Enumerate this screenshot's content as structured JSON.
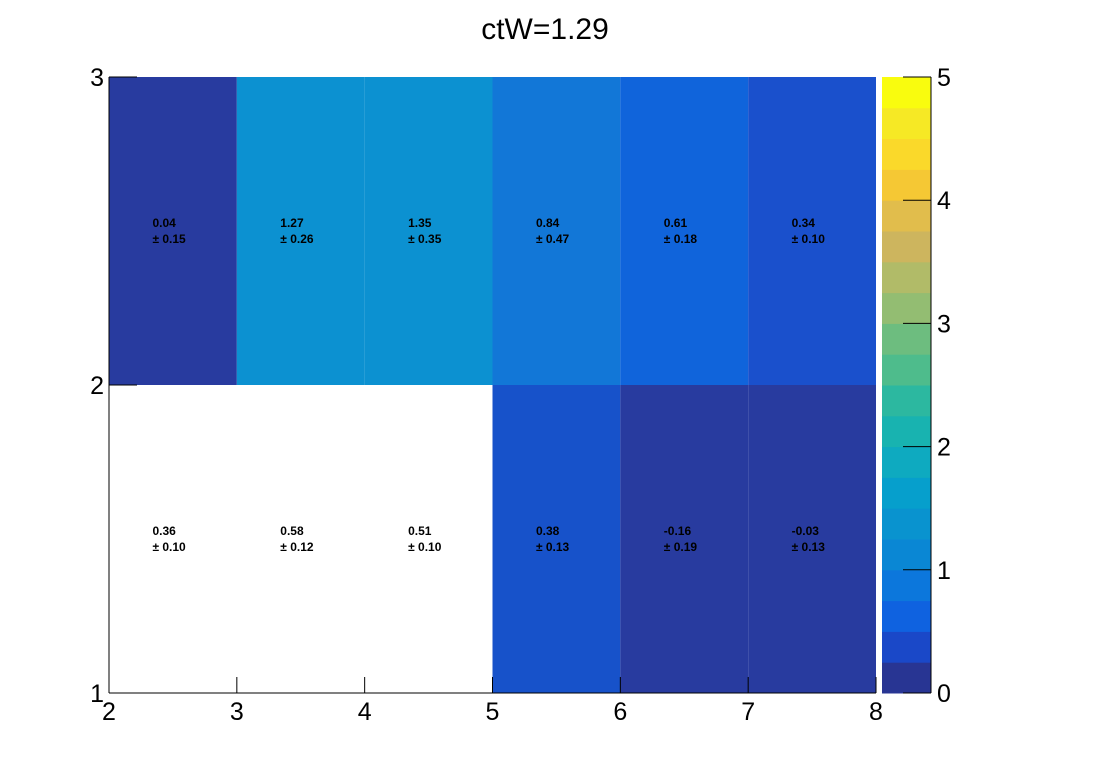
{
  "chart_data": {
    "type": "heatmap",
    "title": "ctW=1.29",
    "xlabel": "",
    "ylabel": "",
    "xlim": [
      2,
      8
    ],
    "ylim": [
      1,
      3
    ],
    "x_edges": [
      2,
      3,
      4,
      5,
      6,
      7,
      8
    ],
    "y_edges": [
      1,
      2,
      3
    ],
    "x_ticks": [
      "2",
      "3",
      "4",
      "5",
      "6",
      "7",
      "8"
    ],
    "y_ticks": [
      "1",
      "2",
      "3"
    ],
    "zlim": [
      0,
      5
    ],
    "colorbar_ticks": [
      "0",
      "1",
      "2",
      "3",
      "4",
      "5"
    ],
    "colorbar_palette": [
      "#283593",
      "#1a48c8",
      "#0f62e0",
      "#0c77dc",
      "#0a87d4",
      "#0993cf",
      "#069fcc",
      "#0eaac0",
      "#18b3b0",
      "#2cb8a0",
      "#4ebc8c",
      "#6dbd7f",
      "#93bd72",
      "#b1bb68",
      "#cdb55e",
      "#e1bd4c",
      "#f5c834",
      "#fad92a",
      "#f6e925",
      "#f9fc0e"
    ],
    "cells": [
      {
        "x": 2.5,
        "y": 2.5,
        "value": "0.04",
        "error": "± 0.15",
        "color": "#283b9f"
      },
      {
        "x": 3.5,
        "y": 2.5,
        "value": "1.27",
        "error": "± 0.26",
        "color": "#0c91d1"
      },
      {
        "x": 4.5,
        "y": 2.5,
        "value": "1.35",
        "error": "± 0.35",
        "color": "#0c91d1"
      },
      {
        "x": 5.5,
        "y": 2.5,
        "value": "0.84",
        "error": "± 0.47",
        "color": "#1277d7"
      },
      {
        "x": 6.5,
        "y": 2.5,
        "value": "0.61",
        "error": "± 0.18",
        "color": "#1064db"
      },
      {
        "x": 7.5,
        "y": 2.5,
        "value": "0.34",
        "error": "± 0.10",
        "color": "#1a50cc"
      },
      {
        "x": 2.5,
        "y": 1.5,
        "value": "0.36",
        "error": "± 0.10",
        "color": "#ffffff"
      },
      {
        "x": 3.5,
        "y": 1.5,
        "value": "0.58",
        "error": "± 0.12",
        "color": "#ffffff"
      },
      {
        "x": 4.5,
        "y": 1.5,
        "value": "0.51",
        "error": "± 0.10",
        "color": "#ffffff"
      },
      {
        "x": 5.5,
        "y": 1.5,
        "value": "0.38",
        "error": "± 0.13",
        "color": "#1752ca"
      },
      {
        "x": 6.5,
        "y": 1.5,
        "value": "-0.16",
        "error": "± 0.19",
        "color": "#283b9f"
      },
      {
        "x": 7.5,
        "y": 1.5,
        "value": "-0.03",
        "error": "± 0.13",
        "color": "#283b9f"
      }
    ]
  }
}
